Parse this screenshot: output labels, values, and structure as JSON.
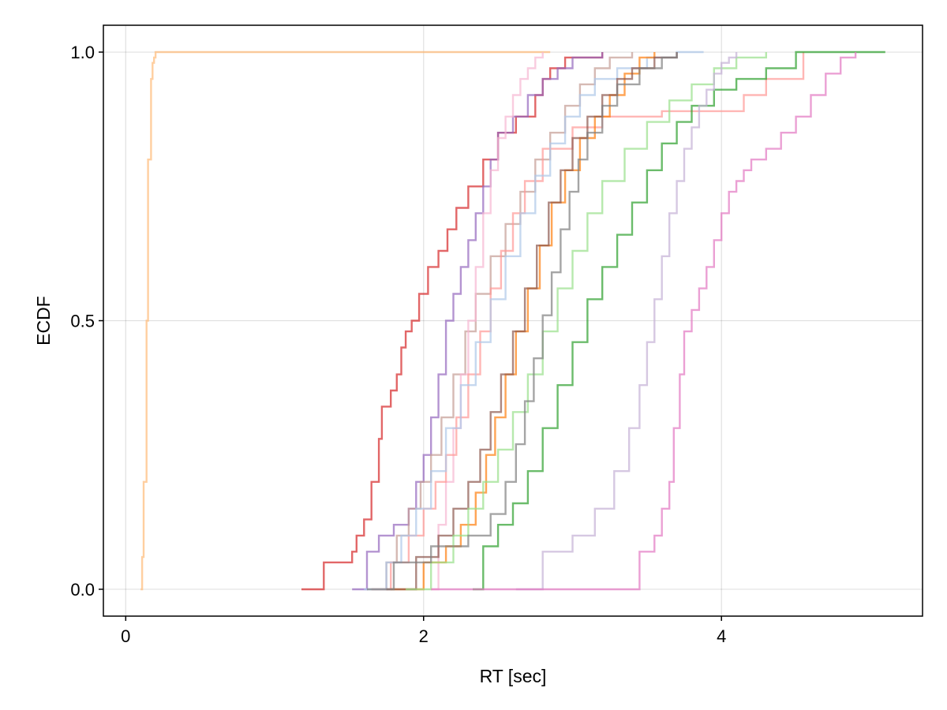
{
  "chart_data": {
    "type": "line",
    "step": true,
    "title": "",
    "xlabel": "RT [sec]",
    "ylabel": "ECDF",
    "xlim": [
      -0.15,
      5.35
    ],
    "ylim": [
      -0.05,
      1.05
    ],
    "xticks": [
      0,
      2,
      4
    ],
    "xtick_labels": [
      "0",
      "2",
      "4"
    ],
    "yticks": [
      0.0,
      0.5,
      1.0
    ],
    "ytick_labels": [
      "0.0",
      "0.5",
      "1.0"
    ],
    "grid": true,
    "legend": "none",
    "series": [
      {
        "color": "#ffbb78",
        "x": [
          0.1,
          0.11,
          0.12,
          0.14,
          0.15,
          0.17,
          0.18,
          0.19,
          0.2,
          2.85
        ],
        "y": [
          0.0,
          0.06,
          0.2,
          0.5,
          0.8,
          0.95,
          0.98,
          0.99,
          1.0,
          1.0
        ]
      },
      {
        "color": "#d62728",
        "x": [
          1.18,
          1.33,
          1.52,
          1.55,
          1.6,
          1.65,
          1.7,
          1.72,
          1.78,
          1.82,
          1.85,
          1.88,
          1.92,
          1.97,
          2.03,
          2.1,
          2.16,
          2.22,
          2.3,
          2.4,
          2.5,
          2.62,
          2.75,
          2.8,
          2.85,
          2.95,
          3.2
        ],
        "y": [
          0.0,
          0.05,
          0.07,
          0.1,
          0.13,
          0.2,
          0.28,
          0.34,
          0.37,
          0.4,
          0.45,
          0.48,
          0.5,
          0.55,
          0.6,
          0.63,
          0.67,
          0.71,
          0.75,
          0.8,
          0.85,
          0.88,
          0.92,
          0.95,
          0.97,
          0.99,
          1.0
        ]
      },
      {
        "color": "#9467bd",
        "x": [
          1.52,
          1.62,
          1.7,
          1.8,
          1.9,
          1.95,
          2.0,
          2.05,
          2.1,
          2.15,
          2.2,
          2.25,
          2.3,
          2.35,
          2.4,
          2.45,
          2.5,
          2.6,
          2.7,
          2.8,
          2.9,
          3.0,
          3.2
        ],
        "y": [
          0.0,
          0.07,
          0.1,
          0.12,
          0.15,
          0.2,
          0.25,
          0.32,
          0.4,
          0.5,
          0.55,
          0.6,
          0.65,
          0.7,
          0.75,
          0.8,
          0.85,
          0.88,
          0.92,
          0.95,
          0.97,
          0.99,
          1.0
        ]
      },
      {
        "color": "#c49c94",
        "x": [
          1.65,
          1.75,
          1.82,
          1.9,
          1.98,
          2.05,
          2.12,
          2.2,
          2.28,
          2.35,
          2.45,
          2.55,
          2.65,
          2.75,
          2.85,
          2.95,
          3.05,
          3.15,
          3.25,
          3.4
        ],
        "y": [
          0.0,
          0.05,
          0.1,
          0.15,
          0.2,
          0.25,
          0.32,
          0.4,
          0.48,
          0.55,
          0.62,
          0.68,
          0.74,
          0.8,
          0.85,
          0.9,
          0.94,
          0.97,
          0.99,
          1.0
        ]
      },
      {
        "color": "#f7b6d2",
        "x": [
          2.05,
          2.1,
          2.15,
          2.2,
          2.25,
          2.3,
          2.35,
          2.4,
          2.45,
          2.5,
          2.55,
          2.6,
          2.65,
          2.7,
          2.75,
          2.8
        ],
        "y": [
          0.0,
          0.12,
          0.2,
          0.3,
          0.4,
          0.5,
          0.6,
          0.7,
          0.78,
          0.84,
          0.88,
          0.92,
          0.95,
          0.97,
          0.99,
          1.0
        ]
      },
      {
        "color": "#ff9896",
        "x": [
          1.65,
          1.78,
          1.9,
          2.0,
          2.08,
          2.15,
          2.22,
          2.3,
          2.38,
          2.45,
          2.52,
          2.6,
          2.68,
          2.8,
          3.0,
          3.2,
          3.6,
          4.15,
          4.3,
          4.55
        ],
        "y": [
          0.0,
          0.05,
          0.1,
          0.15,
          0.2,
          0.25,
          0.32,
          0.4,
          0.48,
          0.56,
          0.63,
          0.7,
          0.76,
          0.82,
          0.86,
          0.88,
          0.89,
          0.92,
          0.95,
          1.0
        ]
      },
      {
        "color": "#aec7e8",
        "x": [
          1.6,
          1.75,
          1.85,
          1.95,
          2.05,
          2.15,
          2.25,
          2.35,
          2.45,
          2.55,
          2.65,
          2.75,
          2.85,
          2.95,
          3.05,
          3.15,
          3.3,
          3.5,
          3.7,
          3.88
        ],
        "y": [
          0.0,
          0.05,
          0.1,
          0.15,
          0.22,
          0.3,
          0.38,
          0.46,
          0.54,
          0.62,
          0.7,
          0.77,
          0.83,
          0.88,
          0.92,
          0.95,
          0.97,
          0.99,
          1.0,
          1.0
        ]
      },
      {
        "color": "#ff7f0e",
        "x": [
          1.78,
          2.0,
          2.15,
          2.25,
          2.35,
          2.42,
          2.48,
          2.55,
          2.62,
          2.7,
          2.78,
          2.86,
          2.95,
          3.05,
          3.15,
          3.25,
          3.35,
          3.45,
          3.55
        ],
        "y": [
          0.0,
          0.05,
          0.08,
          0.12,
          0.18,
          0.25,
          0.32,
          0.4,
          0.48,
          0.56,
          0.64,
          0.72,
          0.78,
          0.84,
          0.88,
          0.92,
          0.96,
          0.99,
          1.0
        ]
      },
      {
        "color": "#8c564b",
        "x": [
          1.75,
          1.95,
          2.1,
          2.2,
          2.3,
          2.38,
          2.45,
          2.52,
          2.6,
          2.68,
          2.76,
          2.84,
          2.92,
          3.0,
          3.1,
          3.2,
          3.3,
          3.4,
          3.55,
          3.7
        ],
        "y": [
          0.0,
          0.06,
          0.1,
          0.15,
          0.2,
          0.26,
          0.33,
          0.4,
          0.48,
          0.56,
          0.64,
          0.72,
          0.78,
          0.84,
          0.88,
          0.92,
          0.95,
          0.97,
          0.99,
          1.0
        ]
      },
      {
        "color": "#98df8a",
        "x": [
          1.88,
          2.05,
          2.2,
          2.3,
          2.4,
          2.5,
          2.6,
          2.7,
          2.8,
          2.9,
          3.0,
          3.1,
          3.2,
          3.35,
          3.5,
          3.65,
          3.8,
          3.95,
          4.1,
          4.3
        ],
        "y": [
          0.0,
          0.05,
          0.1,
          0.15,
          0.2,
          0.26,
          0.33,
          0.4,
          0.48,
          0.56,
          0.63,
          0.7,
          0.76,
          0.82,
          0.87,
          0.91,
          0.94,
          0.97,
          0.99,
          1.0
        ]
      },
      {
        "color": "#7f7f7f",
        "x": [
          1.62,
          1.8,
          2.05,
          2.3,
          2.45,
          2.55,
          2.62,
          2.68,
          2.74,
          2.8,
          2.86,
          2.92,
          2.98,
          3.04,
          3.1,
          3.2,
          3.3,
          3.45,
          3.6,
          3.7
        ],
        "y": [
          0.0,
          0.05,
          0.08,
          0.1,
          0.14,
          0.2,
          0.27,
          0.35,
          0.43,
          0.51,
          0.59,
          0.67,
          0.74,
          0.8,
          0.85,
          0.9,
          0.94,
          0.97,
          0.99,
          1.0
        ]
      },
      {
        "color": "#2ca02c",
        "x": [
          2.33,
          2.4,
          2.5,
          2.6,
          2.7,
          2.8,
          2.9,
          3.0,
          3.1,
          3.2,
          3.3,
          3.4,
          3.5,
          3.6,
          3.7,
          3.8,
          3.95,
          4.1,
          4.3,
          4.5,
          4.7,
          5.1
        ],
        "y": [
          0.0,
          0.08,
          0.12,
          0.16,
          0.22,
          0.3,
          0.38,
          0.46,
          0.54,
          0.6,
          0.66,
          0.72,
          0.78,
          0.83,
          0.87,
          0.9,
          0.93,
          0.95,
          0.97,
          1.0,
          1.0,
          1.0
        ]
      },
      {
        "color": "#c5b0d5",
        "x": [
          2.62,
          2.8,
          3.0,
          3.15,
          3.28,
          3.38,
          3.45,
          3.5,
          3.55,
          3.6,
          3.65,
          3.7,
          3.75,
          3.8,
          3.85,
          3.9,
          3.95,
          4.0,
          4.05,
          4.1
        ],
        "y": [
          0.0,
          0.07,
          0.1,
          0.15,
          0.22,
          0.3,
          0.38,
          0.46,
          0.54,
          0.62,
          0.7,
          0.76,
          0.82,
          0.86,
          0.9,
          0.93,
          0.96,
          0.98,
          0.99,
          1.0
        ]
      },
      {
        "color": "#e377c2",
        "x": [
          2.05,
          3.45,
          3.55,
          3.6,
          3.65,
          3.68,
          3.72,
          3.75,
          3.8,
          3.85,
          3.9,
          3.95,
          4.0,
          4.05,
          4.1,
          4.15,
          4.2,
          4.3,
          4.4,
          4.5,
          4.6,
          4.7,
          4.8,
          4.9
        ],
        "y": [
          0.0,
          0.07,
          0.1,
          0.15,
          0.2,
          0.3,
          0.4,
          0.48,
          0.52,
          0.56,
          0.6,
          0.65,
          0.7,
          0.74,
          0.76,
          0.78,
          0.8,
          0.82,
          0.85,
          0.88,
          0.92,
          0.96,
          0.99,
          1.0
        ]
      }
    ]
  }
}
